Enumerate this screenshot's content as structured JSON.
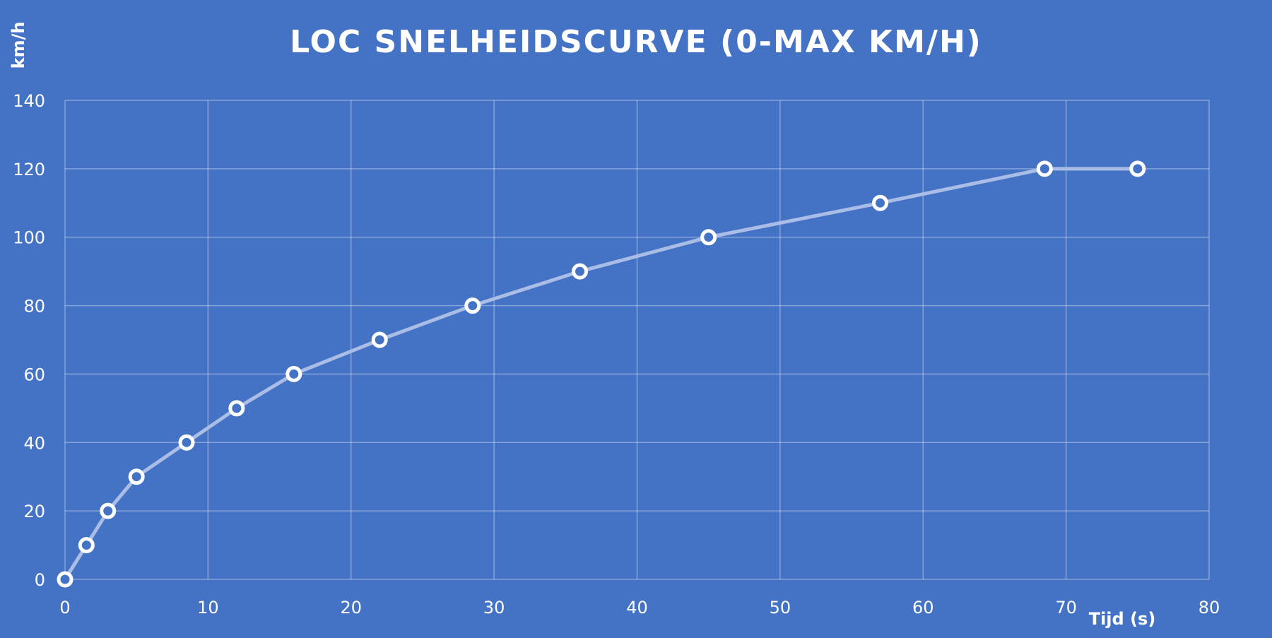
{
  "chart_data": {
    "type": "line",
    "title": "LOC SNELHEIDSCURVE (0-MAX KM/H)",
    "xlabel": "Tijd (s)",
    "ylabel": "km/h",
    "xlim": [
      0,
      80
    ],
    "ylim": [
      0,
      140
    ],
    "xticks": [
      0,
      10,
      20,
      30,
      40,
      50,
      60,
      70,
      80
    ],
    "yticks": [
      0,
      20,
      40,
      60,
      80,
      100,
      120,
      140
    ],
    "grid": true,
    "legend": "none",
    "colors": {
      "background": "#4472c4",
      "line": "#a9bde6",
      "marker_stroke": "#ffffff",
      "text": "#ffffff"
    },
    "series": [
      {
        "x": [
          0,
          1.5,
          3,
          5,
          8.5,
          12,
          16,
          22,
          28.5,
          36,
          45,
          57,
          68.5,
          75
        ],
        "y": [
          0,
          10,
          20,
          30,
          40,
          50,
          60,
          70,
          80,
          90,
          100,
          110,
          120,
          120
        ]
      }
    ]
  }
}
